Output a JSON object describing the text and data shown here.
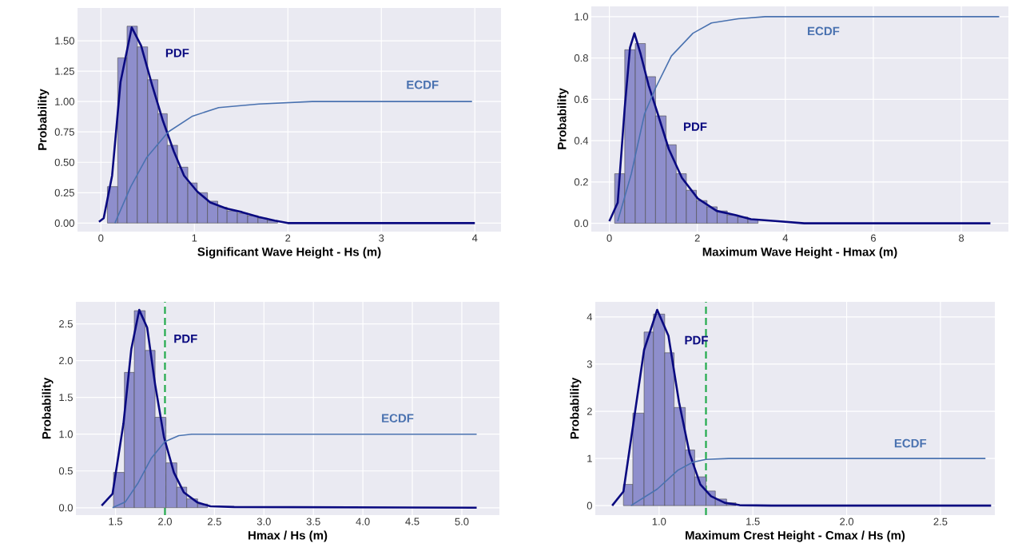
{
  "chart_data": [
    {
      "type": "histogram",
      "xlabel": "Significant Wave Height - Hs (m)",
      "ylabel": "Probability",
      "grid": true,
      "xlim": [
        -0.25,
        4.28
      ],
      "ylim": [
        -0.07,
        1.77
      ],
      "xticks": [
        0,
        1,
        2,
        3,
        4
      ],
      "yticks": [
        {
          "value": 0,
          "label": "0.00"
        },
        {
          "value": 0.25,
          "label": "0.25"
        },
        {
          "value": 0.5,
          "label": "0.50"
        },
        {
          "value": 0.75,
          "label": "0.75"
        },
        {
          "value": 1,
          "label": "1.00"
        },
        {
          "value": 1.25,
          "label": "1.25"
        },
        {
          "value": 1.5,
          "label": "1.50"
        }
      ],
      "series": [
        {
          "color": "#8e8ecc",
          "bins": [
            0.07,
            0.18,
            0.28,
            0.39,
            0.5,
            0.61,
            0.71,
            0.82,
            0.93,
            1.03,
            1.14,
            1.25,
            1.35,
            1.46,
            1.57,
            1.68,
            1.78,
            1.89
          ],
          "values": [
            0.3,
            1.36,
            1.62,
            1.45,
            1.18,
            0.9,
            0.64,
            0.46,
            0.33,
            0.25,
            0.18,
            0.13,
            0.1,
            0.08,
            0.06,
            0.04,
            0.02
          ]
        },
        {
          "type": "line",
          "name": "PDF",
          "color": "#0a0a80",
          "x": [
            -0.02,
            0.03,
            0.12,
            0.21,
            0.33,
            0.43,
            0.55,
            0.66,
            0.78,
            0.89,
            1.03,
            1.17,
            1.34,
            1.51,
            1.69,
            1.86,
            2.0,
            3.0,
            4.0
          ],
          "values": [
            0.01,
            0.04,
            0.39,
            1.16,
            1.61,
            1.46,
            1.13,
            0.85,
            0.59,
            0.39,
            0.26,
            0.17,
            0.12,
            0.09,
            0.05,
            0.02,
            0,
            0,
            0
          ]
        },
        {
          "type": "line",
          "name": "ECDF",
          "color": "#4a72b0",
          "x": [
            0.15,
            0.32,
            0.49,
            0.72,
            0.98,
            1.26,
            1.69,
            2.26,
            3.0,
            3.97
          ],
          "values": [
            0,
            0.3,
            0.54,
            0.75,
            0.88,
            0.95,
            0.98,
            1.0,
            1.0,
            1.0
          ]
        }
      ]
    },
    {
      "type": "histogram",
      "xlabel": "Maximum Wave Height - Hmax (m)",
      "ylabel": "Probability",
      "grid": true,
      "xlim": [
        -0.41,
        9.07
      ],
      "ylim": [
        -0.04,
        1.05
      ],
      "xticks": [
        0,
        2,
        4,
        6,
        8
      ],
      "yticks": [
        {
          "value": 0,
          "label": "0.0"
        },
        {
          "value": 0.2,
          "label": "0.2"
        },
        {
          "value": 0.4,
          "label": "0.4"
        },
        {
          "value": 0.6,
          "label": "0.6"
        },
        {
          "value": 0.8,
          "label": "0.8"
        },
        {
          "value": 1,
          "label": "1.0"
        }
      ],
      "series": [
        {
          "color": "#8e8ecc",
          "bins": [
            0.12,
            0.35,
            0.59,
            0.82,
            1.05,
            1.29,
            1.52,
            1.75,
            1.98,
            2.22,
            2.45,
            2.68,
            2.92,
            3.15,
            3.38
          ],
          "values": [
            0.24,
            0.84,
            0.87,
            0.71,
            0.52,
            0.38,
            0.24,
            0.16,
            0.11,
            0.08,
            0.06,
            0.04,
            0.03,
            0.02
          ]
        },
        {
          "type": "line",
          "name": "PDF",
          "color": "#0a0a80",
          "x": [
            0.0,
            0.19,
            0.35,
            0.47,
            0.57,
            0.71,
            0.89,
            1.1,
            1.35,
            1.65,
            2.01,
            2.44,
            2.86,
            3.22,
            3.83,
            4.43,
            5.5,
            8.66
          ],
          "values": [
            0.01,
            0.1,
            0.56,
            0.85,
            0.92,
            0.82,
            0.67,
            0.53,
            0.36,
            0.22,
            0.12,
            0.06,
            0.04,
            0.02,
            0.01,
            0,
            0,
            0
          ]
        },
        {
          "type": "line",
          "name": "ECDF",
          "color": "#4a72b0",
          "x": [
            0.19,
            0.5,
            0.8,
            1.04,
            1.41,
            1.9,
            2.32,
            2.93,
            3.54,
            4.15,
            8.86
          ],
          "values": [
            0.01,
            0.24,
            0.53,
            0.65,
            0.81,
            0.92,
            0.97,
            0.99,
            1.0,
            1.0,
            1.0
          ]
        }
      ]
    },
    {
      "type": "histogram",
      "xlabel": "Hmax / Hs (m)",
      "ylabel": "Probability",
      "grid": true,
      "xlim": [
        1.1,
        5.38
      ],
      "ylim": [
        -0.1,
        2.8
      ],
      "xticks": [
        {
          "value": 1.5,
          "label": "1.5"
        },
        {
          "value": 2,
          "label": "2.0"
        },
        {
          "value": 2.5,
          "label": "2.5"
        },
        {
          "value": 3,
          "label": "3.0"
        },
        {
          "value": 3.5,
          "label": "3.5"
        },
        {
          "value": 4,
          "label": "4.0"
        },
        {
          "value": 4.5,
          "label": "4.5"
        },
        {
          "value": 5,
          "label": "5.0"
        }
      ],
      "yticks": [
        {
          "value": 0,
          "label": "0.0"
        },
        {
          "value": 0.5,
          "label": "0.5"
        },
        {
          "value": 1,
          "label": "1.0"
        },
        {
          "value": 1.5,
          "label": "1.5"
        },
        {
          "value": 2,
          "label": "2.0"
        },
        {
          "value": 2.5,
          "label": "2.5"
        }
      ],
      "ref_lines": [
        {
          "axis": "x",
          "value": 2.0,
          "color": "#22aa4c",
          "line_style": "dashed"
        }
      ],
      "series": [
        {
          "color": "#8e8ecc",
          "bins": [
            1.48,
            1.59,
            1.69,
            1.8,
            1.9,
            2.01,
            2.12,
            2.22,
            2.33,
            2.43
          ],
          "values": [
            0.48,
            1.84,
            2.68,
            2.14,
            1.23,
            0.61,
            0.28,
            0.12,
            0.05
          ]
        },
        {
          "type": "line",
          "name": "PDF",
          "color": "#0a0a80",
          "x": [
            1.36,
            1.47,
            1.58,
            1.66,
            1.74,
            1.82,
            1.9,
            1.99,
            2.09,
            2.19,
            2.33,
            2.46,
            2.7,
            5.15
          ],
          "values": [
            0.03,
            0.19,
            1.14,
            2.16,
            2.69,
            2.45,
            1.68,
            0.96,
            0.48,
            0.21,
            0.07,
            0.02,
            0.01,
            0
          ]
        },
        {
          "type": "line",
          "name": "ECDF",
          "color": "#4a72b0",
          "x": [
            1.47,
            1.6,
            1.73,
            1.86,
            2.0,
            2.14,
            2.27,
            5.15
          ],
          "values": [
            0,
            0.08,
            0.34,
            0.67,
            0.9,
            0.98,
            1.0,
            1.0
          ]
        }
      ]
    },
    {
      "type": "histogram",
      "xlabel": "Maximum Crest Height - Cmax / Hs (m)",
      "ylabel": "Probability",
      "grid": true,
      "xlim": [
        0.66,
        2.79
      ],
      "ylim": [
        -0.2,
        4.32
      ],
      "xticks": [
        {
          "value": 1,
          "label": "1.0"
        },
        {
          "value": 1.5,
          "label": "1.5"
        },
        {
          "value": 2,
          "label": "2.0"
        },
        {
          "value": 2.5,
          "label": "2.5"
        }
      ],
      "yticks": [
        0,
        1,
        2,
        3,
        4
      ],
      "ref_lines": [
        {
          "axis": "x",
          "value": 1.25,
          "color": "#22aa4c",
          "line_style": "dashed"
        }
      ],
      "series": [
        {
          "color": "#8e8ecc",
          "bins": [
            0.81,
            0.86,
            0.92,
            0.97,
            1.03,
            1.08,
            1.14,
            1.19,
            1.25,
            1.3,
            1.36,
            1.41
          ],
          "values": [
            0.45,
            1.96,
            3.68,
            4.06,
            3.24,
            2.08,
            1.18,
            0.61,
            0.31,
            0.14,
            0.06
          ]
        },
        {
          "type": "line",
          "name": "PDF",
          "color": "#0a0a80",
          "x": [
            0.75,
            0.81,
            0.865,
            0.92,
            0.99,
            1.05,
            1.106,
            1.163,
            1.22,
            1.277,
            1.35,
            1.43,
            1.6,
            2.77
          ],
          "values": [
            0,
            0.3,
            1.8,
            3.3,
            4.15,
            3.6,
            2.2,
            1.1,
            0.45,
            0.2,
            0.06,
            0.01,
            0,
            0
          ]
        },
        {
          "type": "line",
          "name": "ECDF",
          "color": "#4a72b0",
          "x": [
            0.85,
            0.99,
            1.1,
            1.18,
            1.25,
            1.37,
            2.74
          ],
          "values": [
            0,
            0.35,
            0.75,
            0.92,
            0.98,
            1.0,
            1.0
          ]
        }
      ]
    }
  ]
}
